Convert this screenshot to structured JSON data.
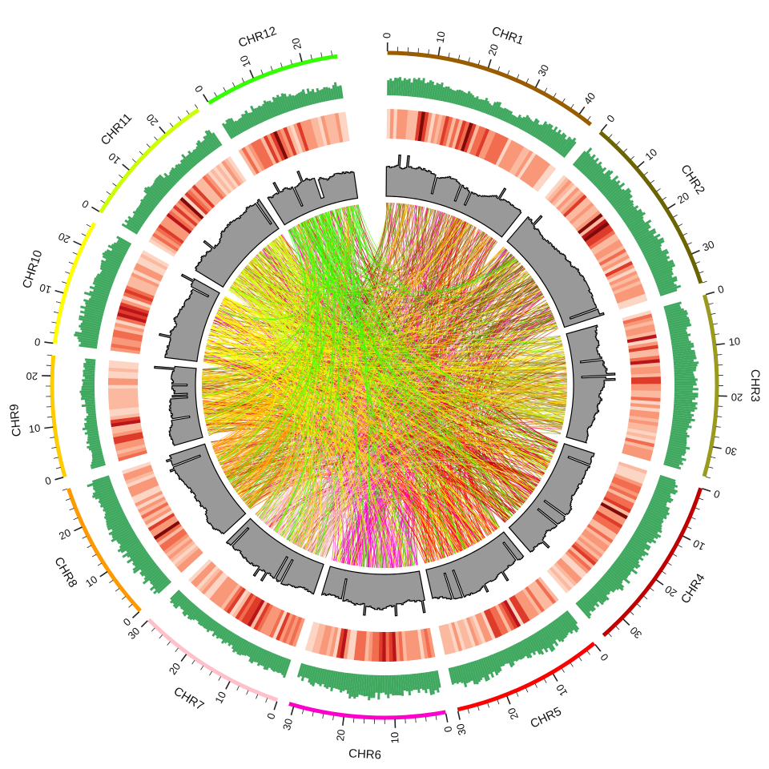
{
  "chart_data": {
    "type": "circos",
    "unit_ticks": {
      "major_step": 10,
      "minor_step": 2
    },
    "chromosomes": [
      {
        "name": "CHR1",
        "length": 43,
        "color": "#9a5c00"
      },
      {
        "name": "CHR2",
        "length": 36,
        "color": "#6b6400"
      },
      {
        "name": "CHR3",
        "length": 36,
        "color": "#9a9a1e"
      },
      {
        "name": "CHR4",
        "length": 35,
        "color": "#c00000"
      },
      {
        "name": "CHR5",
        "length": 30,
        "color": "#ff0000"
      },
      {
        "name": "CHR6",
        "length": 31,
        "color": "#ff00cc"
      },
      {
        "name": "CHR7",
        "length": 30,
        "color": "#ffc0cb"
      },
      {
        "name": "CHR8",
        "length": 28,
        "color": "#ff9900"
      },
      {
        "name": "CHR9",
        "length": 24,
        "color": "#ffcc00"
      },
      {
        "name": "CHR10",
        "length": 25,
        "color": "#ffff00"
      },
      {
        "name": "CHR11",
        "length": 28,
        "color": "#ccff00"
      },
      {
        "name": "CHR12",
        "length": 27,
        "color": "#33ff00"
      }
    ],
    "tracks": [
      {
        "type": "histogram",
        "color": "#3fa85f"
      },
      {
        "type": "heatmap",
        "color_range": [
          "#fcd0bf",
          "#8b0000"
        ]
      },
      {
        "type": "line",
        "fill": "#999999",
        "stroke": "#000000"
      },
      {
        "type": "links",
        "color_by": "source chromosome"
      }
    ]
  }
}
